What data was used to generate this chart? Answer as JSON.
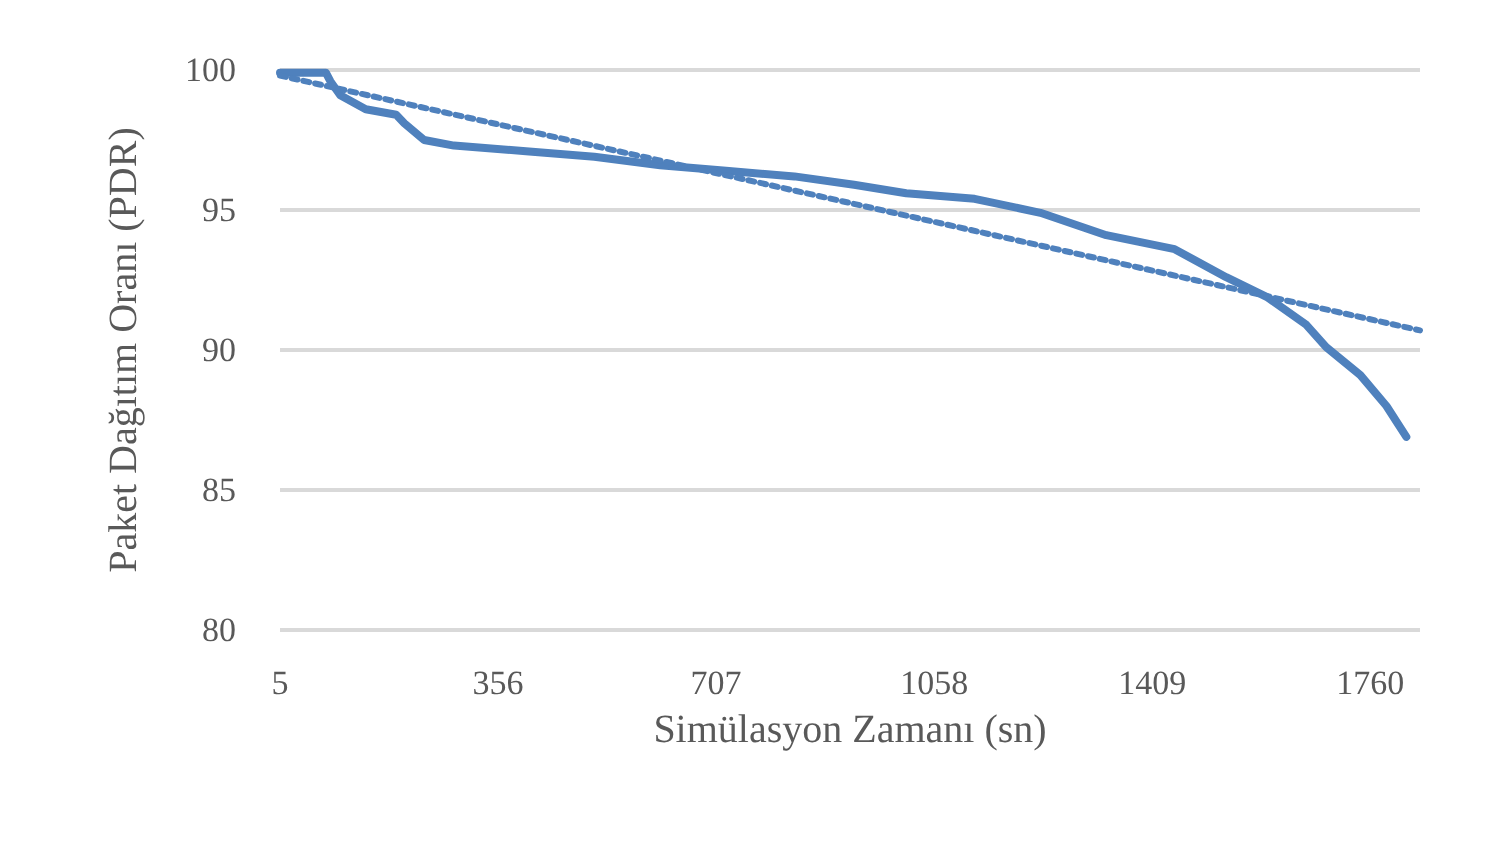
{
  "chart_data": {
    "type": "line",
    "xlabel": "Simülasyon Zamanı (sn)",
    "ylabel": "Paket Dağıtım Oranı (PDR)",
    "xlim": [
      5,
      1840
    ],
    "xticks": [
      5,
      356,
      707,
      1058,
      1409,
      1760
    ],
    "ylim": [
      80,
      100
    ],
    "yticks": [
      80,
      85,
      90,
      95,
      100
    ],
    "grid": "y",
    "marker": "none",
    "series": [
      {
        "color": "#4f81bd",
        "line_style": "solid",
        "x": [
          5,
          79,
          86,
          102,
          143,
          192,
          205,
          237,
          285,
          401,
          511,
          617,
          723,
          833,
          929,
          1013,
          1123,
          1229,
          1335,
          1445,
          1528,
          1593,
          1657,
          1689,
          1744,
          1786,
          1818
        ],
        "values": [
          99.9,
          99.9,
          99.6,
          99.1,
          98.6,
          98.4,
          98.1,
          97.5,
          97.3,
          97.1,
          96.9,
          96.6,
          96.4,
          96.2,
          95.9,
          95.6,
          95.4,
          94.9,
          94.1,
          93.6,
          92.6,
          91.9,
          90.9,
          90.1,
          89.1,
          88.0,
          86.9
        ]
      },
      {
        "color": "#4f81bd",
        "line_style": "dotted",
        "x": [
          5,
          1840
        ],
        "values": [
          99.8,
          90.7
        ]
      }
    ]
  }
}
